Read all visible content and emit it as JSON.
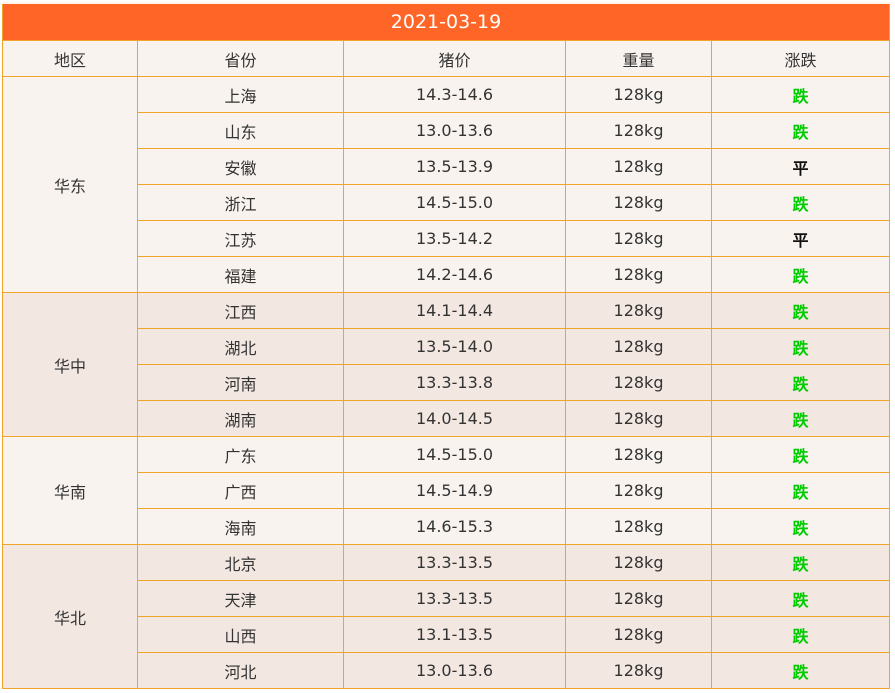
{
  "title": "2021-03-19",
  "headers": [
    "地区",
    "省份",
    "猪价",
    "重量",
    "涨跌"
  ],
  "colors": {
    "title_bg": "#ff6526",
    "border": "#f0a42a",
    "down": "#00cc00",
    "flat": "#111111"
  },
  "groups": [
    {
      "region": "华东",
      "rows": [
        {
          "province": "上海",
          "price": "14.3-14.6",
          "weight": "128kg",
          "trend": "跌"
        },
        {
          "province": "山东",
          "price": "13.0-13.6",
          "weight": "128kg",
          "trend": "跌"
        },
        {
          "province": "安徽",
          "price": "13.5-13.9",
          "weight": "128kg",
          "trend": "平"
        },
        {
          "province": "浙江",
          "price": "14.5-15.0",
          "weight": "128kg",
          "trend": "跌"
        },
        {
          "province": "江苏",
          "price": "13.5-14.2",
          "weight": "128kg",
          "trend": "平"
        },
        {
          "province": "福建",
          "price": "14.2-14.6",
          "weight": "128kg",
          "trend": "跌"
        }
      ]
    },
    {
      "region": "华中",
      "rows": [
        {
          "province": "江西",
          "price": "14.1-14.4",
          "weight": "128kg",
          "trend": "跌"
        },
        {
          "province": "湖北",
          "price": "13.5-14.0",
          "weight": "128kg",
          "trend": "跌"
        },
        {
          "province": "河南",
          "price": "13.3-13.8",
          "weight": "128kg",
          "trend": "跌"
        },
        {
          "province": "湖南",
          "price": "14.0-14.5",
          "weight": "128kg",
          "trend": "跌"
        }
      ]
    },
    {
      "region": "华南",
      "rows": [
        {
          "province": "广东",
          "price": "14.5-15.0",
          "weight": "128kg",
          "trend": "跌"
        },
        {
          "province": "广西",
          "price": "14.5-14.9",
          "weight": "128kg",
          "trend": "跌"
        },
        {
          "province": "海南",
          "price": "14.6-15.3",
          "weight": "128kg",
          "trend": "跌"
        }
      ]
    },
    {
      "region": "华北",
      "rows": [
        {
          "province": "北京",
          "price": "13.3-13.5",
          "weight": "128kg",
          "trend": "跌"
        },
        {
          "province": "天津",
          "price": "13.3-13.5",
          "weight": "128kg",
          "trend": "跌"
        },
        {
          "province": "山西",
          "price": "13.1-13.5",
          "weight": "128kg",
          "trend": "跌"
        },
        {
          "province": "河北",
          "price": "13.0-13.6",
          "weight": "128kg",
          "trend": "跌"
        }
      ]
    }
  ]
}
